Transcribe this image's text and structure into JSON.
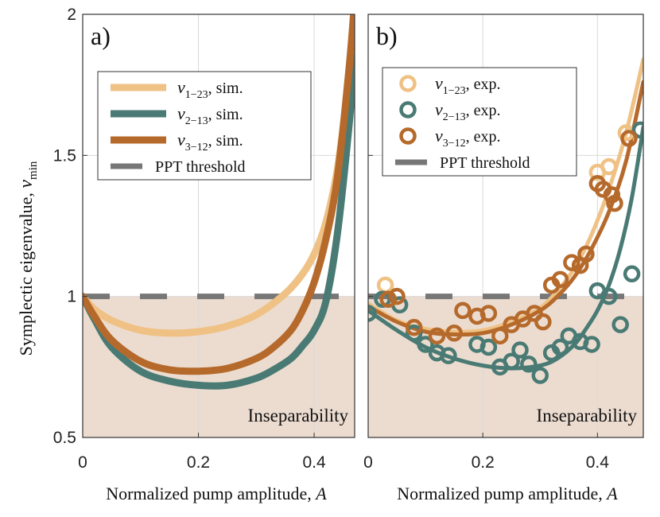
{
  "figure": {
    "ylabel": "Symplectic eigenvalue, ",
    "ylabel_symbol": "ν",
    "ylabel_sub": "min",
    "xlabel": "Normalized pump amplitude, ",
    "xlabel_symbol": "A"
  },
  "chart_data": [
    {
      "type": "line",
      "panel_label": "a)",
      "xlim": [
        0,
        0.47
      ],
      "ylim": [
        0.5,
        2
      ],
      "xticks": [
        0,
        0.2,
        0.4
      ],
      "xtick_labels": [
        "0",
        "0.2",
        "0.4"
      ],
      "yticks": [
        0.5,
        1,
        1.5,
        2
      ],
      "ytick_labels": [
        "0.5",
        "1",
        "1.5",
        "2"
      ],
      "grid": true,
      "legend_position": "top-left",
      "region": {
        "label": "Inseparability",
        "ymin": 0.5,
        "ymax": 1,
        "color": "#ecdcd0"
      },
      "threshold": {
        "name": "PPT threshold",
        "y": 1,
        "color": "#777777"
      },
      "series": [
        {
          "name": "ν",
          "name_sub": "1−23",
          "name_suffix": ", sim.",
          "color": "#efc184",
          "kind": "line",
          "x": [
            0,
            0.02,
            0.05,
            0.1,
            0.15,
            0.2,
            0.25,
            0.3,
            0.35,
            0.38,
            0.4,
            0.42,
            0.44,
            0.46,
            0.47
          ],
          "y": [
            1.0,
            0.955,
            0.915,
            0.88,
            0.87,
            0.875,
            0.895,
            0.935,
            1.01,
            1.08,
            1.15,
            1.26,
            1.45,
            1.78,
            2.05
          ]
        },
        {
          "name": "ν",
          "name_sub": "2−13",
          "name_suffix": ", sim.",
          "color": "#497a74",
          "kind": "line",
          "x": [
            0,
            0.02,
            0.05,
            0.1,
            0.15,
            0.2,
            0.25,
            0.3,
            0.33,
            0.36,
            0.38,
            0.4,
            0.42,
            0.44,
            0.46,
            0.47
          ],
          "y": [
            1.0,
            0.92,
            0.82,
            0.735,
            0.7,
            0.685,
            0.685,
            0.71,
            0.74,
            0.78,
            0.825,
            0.88,
            0.98,
            1.22,
            1.6,
            1.85
          ]
        },
        {
          "name": "ν",
          "name_sub": "3−12",
          "name_suffix": ", sim.",
          "color": "#b56a2c",
          "kind": "line",
          "x": [
            0,
            0.02,
            0.05,
            0.1,
            0.15,
            0.2,
            0.25,
            0.3,
            0.33,
            0.36,
            0.38,
            0.4,
            0.42,
            0.44,
            0.46,
            0.47
          ],
          "y": [
            1.0,
            0.93,
            0.845,
            0.77,
            0.74,
            0.735,
            0.745,
            0.78,
            0.82,
            0.88,
            0.95,
            1.05,
            1.2,
            1.42,
            1.8,
            2.05
          ]
        }
      ],
      "inseparability_label": "Inseparability"
    },
    {
      "type": "scatter",
      "panel_label": "b)",
      "xlim": [
        0,
        0.48
      ],
      "ylim": [
        0.5,
        2
      ],
      "xticks": [
        0,
        0.2,
        0.4
      ],
      "xtick_labels": [
        "0",
        "0.2",
        "0.4"
      ],
      "yticks": [
        0.5,
        1,
        1.5,
        2
      ],
      "ytick_labels": [
        "",
        "",
        "",
        ""
      ],
      "grid": true,
      "legend_position": "top-left",
      "region": {
        "label": "Inseparability",
        "ymin": 0.5,
        "ymax": 1,
        "color": "#ecdcd0"
      },
      "threshold": {
        "name": "PPT threshold",
        "y": 1,
        "color": "#777777"
      },
      "series": [
        {
          "name": "ν",
          "name_sub": "1−23",
          "name_suffix": ", exp.",
          "color": "#efc184",
          "kind": "scatter",
          "x": [
            0.03,
            0.4,
            0.42,
            0.45
          ],
          "y": [
            1.04,
            1.44,
            1.46,
            1.58
          ]
        },
        {
          "name": "ν",
          "name_sub": "2−13",
          "name_suffix": ", exp.",
          "color": "#497a74",
          "kind": "scatter",
          "x": [
            0.0,
            0.025,
            0.055,
            0.08,
            0.1,
            0.12,
            0.14,
            0.19,
            0.21,
            0.23,
            0.25,
            0.265,
            0.28,
            0.3,
            0.32,
            0.335,
            0.35,
            0.37,
            0.39,
            0.4,
            0.42,
            0.44,
            0.46,
            0.475
          ],
          "y": [
            0.94,
            0.99,
            0.97,
            0.87,
            0.83,
            0.8,
            0.79,
            0.83,
            0.82,
            0.75,
            0.77,
            0.81,
            0.76,
            0.72,
            0.8,
            0.82,
            0.86,
            0.84,
            0.83,
            1.02,
            1.0,
            0.9,
            1.08,
            1.59
          ]
        },
        {
          "name": "ν",
          "name_sub": "3−12",
          "name_suffix": ", exp.",
          "color": "#b56a2c",
          "kind": "scatter",
          "x": [
            0.035,
            0.05,
            0.08,
            0.12,
            0.15,
            0.165,
            0.19,
            0.21,
            0.23,
            0.25,
            0.27,
            0.29,
            0.305,
            0.32,
            0.335,
            0.355,
            0.37,
            0.38,
            0.4,
            0.41,
            0.425,
            0.43,
            0.455
          ],
          "y": [
            0.99,
            1.0,
            0.89,
            0.86,
            0.87,
            0.95,
            0.93,
            0.94,
            0.86,
            0.9,
            0.92,
            0.94,
            0.91,
            1.04,
            1.06,
            1.12,
            1.11,
            1.15,
            1.4,
            1.38,
            1.36,
            1.33,
            1.56
          ]
        },
        {
          "name": "",
          "color": "#efc184",
          "kind": "fit",
          "x": [
            0,
            0.05,
            0.1,
            0.15,
            0.2,
            0.25,
            0.3,
            0.33,
            0.36,
            0.39,
            0.42,
            0.45,
            0.48
          ],
          "y": [
            0.975,
            0.915,
            0.885,
            0.875,
            0.88,
            0.91,
            0.96,
            1.02,
            1.1,
            1.22,
            1.38,
            1.58,
            1.84
          ]
        },
        {
          "name": "",
          "color": "#497a74",
          "kind": "fit",
          "x": [
            0,
            0.05,
            0.1,
            0.15,
            0.2,
            0.25,
            0.3,
            0.33,
            0.36,
            0.38,
            0.4,
            0.42,
            0.44,
            0.46,
            0.48
          ],
          "y": [
            0.95,
            0.88,
            0.82,
            0.78,
            0.755,
            0.745,
            0.755,
            0.78,
            0.83,
            0.885,
            0.95,
            1.04,
            1.17,
            1.35,
            1.6
          ]
        },
        {
          "name": "",
          "color": "#b56a2c",
          "kind": "fit",
          "x": [
            0,
            0.05,
            0.1,
            0.15,
            0.2,
            0.25,
            0.3,
            0.33,
            0.36,
            0.39,
            0.42,
            0.45,
            0.48
          ],
          "y": [
            0.965,
            0.91,
            0.875,
            0.865,
            0.87,
            0.9,
            0.95,
            1.0,
            1.07,
            1.17,
            1.3,
            1.48,
            1.76
          ]
        }
      ],
      "inseparability_label": "Inseparability"
    }
  ]
}
